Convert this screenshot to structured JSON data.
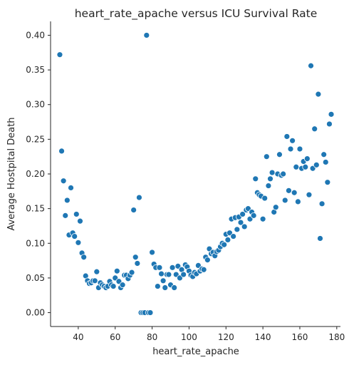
{
  "chart_data": {
    "type": "scatter",
    "title": "heart_rate_apache versus ICU Survival Rate",
    "xlabel": "heart_rate_apache",
    "ylabel": "Average Hostpital Death",
    "xlim": [
      25,
      182
    ],
    "ylim": [
      -0.02,
      0.42
    ],
    "xticks": [
      40,
      60,
      80,
      100,
      120,
      140,
      160,
      180
    ],
    "yticks": [
      0.0,
      0.05,
      0.1,
      0.15,
      0.2,
      0.25,
      0.3,
      0.35,
      0.4
    ],
    "ytick_labels": [
      "0.00",
      "0.05",
      "0.10",
      "0.15",
      "0.20",
      "0.25",
      "0.30",
      "0.35",
      "0.40"
    ],
    "grid": false,
    "marker_color": "#1f77b4",
    "marker_edge": "#ffffff",
    "points": [
      [
        30,
        0.372
      ],
      [
        31,
        0.233
      ],
      [
        32,
        0.19
      ],
      [
        33,
        0.14
      ],
      [
        34,
        0.162
      ],
      [
        35,
        0.112
      ],
      [
        36,
        0.18
      ],
      [
        37,
        0.115
      ],
      [
        38,
        0.11
      ],
      [
        39,
        0.142
      ],
      [
        40,
        0.101
      ],
      [
        41,
        0.132
      ],
      [
        42,
        0.086
      ],
      [
        43,
        0.08
      ],
      [
        44,
        0.053
      ],
      [
        45,
        0.046
      ],
      [
        46,
        0.042
      ],
      [
        47,
        0.043
      ],
      [
        48,
        0.046
      ],
      [
        49,
        0.046
      ],
      [
        50,
        0.059
      ],
      [
        51,
        0.036
      ],
      [
        52,
        0.043
      ],
      [
        53,
        0.04
      ],
      [
        54,
        0.038
      ],
      [
        55,
        0.036
      ],
      [
        56,
        0.038
      ],
      [
        57,
        0.045
      ],
      [
        58,
        0.04
      ],
      [
        59,
        0.038
      ],
      [
        60,
        0.05
      ],
      [
        61,
        0.06
      ],
      [
        62,
        0.045
      ],
      [
        63,
        0.036
      ],
      [
        64,
        0.04
      ],
      [
        65,
        0.054
      ],
      [
        66,
        0.054
      ],
      [
        67,
        0.049
      ],
      [
        68,
        0.054
      ],
      [
        69,
        0.058
      ],
      [
        70,
        0.148
      ],
      [
        71,
        0.08
      ],
      [
        72,
        0.071
      ],
      [
        73,
        0.166
      ],
      [
        74,
        0.0
      ],
      [
        75,
        0.0
      ],
      [
        76,
        0.0
      ],
      [
        77,
        0.4
      ],
      [
        78,
        0.0
      ],
      [
        79,
        0.0
      ],
      [
        80,
        0.087
      ],
      [
        81,
        0.07
      ],
      [
        82,
        0.065
      ],
      [
        83,
        0.038
      ],
      [
        84,
        0.065
      ],
      [
        85,
        0.056
      ],
      [
        86,
        0.046
      ],
      [
        87,
        0.036
      ],
      [
        88,
        0.055
      ],
      [
        89,
        0.055
      ],
      [
        90,
        0.04
      ],
      [
        91,
        0.065
      ],
      [
        92,
        0.036
      ],
      [
        93,
        0.055
      ],
      [
        94,
        0.067
      ],
      [
        95,
        0.05
      ],
      [
        96,
        0.062
      ],
      [
        97,
        0.055
      ],
      [
        98,
        0.069
      ],
      [
        99,
        0.066
      ],
      [
        100,
        0.06
      ],
      [
        101,
        0.054
      ],
      [
        102,
        0.052
      ],
      [
        103,
        0.058
      ],
      [
        104,
        0.056
      ],
      [
        105,
        0.068
      ],
      [
        106,
        0.06
      ],
      [
        107,
        0.063
      ],
      [
        108,
        0.062
      ],
      [
        109,
        0.08
      ],
      [
        110,
        0.076
      ],
      [
        111,
        0.092
      ],
      [
        112,
        0.085
      ],
      [
        113,
        0.087
      ],
      [
        114,
        0.082
      ],
      [
        115,
        0.088
      ],
      [
        116,
        0.09
      ],
      [
        117,
        0.095
      ],
      [
        118,
        0.1
      ],
      [
        119,
        0.098
      ],
      [
        120,
        0.113
      ],
      [
        121,
        0.105
      ],
      [
        122,
        0.115
      ],
      [
        123,
        0.135
      ],
      [
        124,
        0.11
      ],
      [
        125,
        0.137
      ],
      [
        126,
        0.12
      ],
      [
        127,
        0.138
      ],
      [
        128,
        0.13
      ],
      [
        129,
        0.142
      ],
      [
        130,
        0.124
      ],
      [
        131,
        0.148
      ],
      [
        132,
        0.15
      ],
      [
        133,
        0.135
      ],
      [
        134,
        0.145
      ],
      [
        135,
        0.14
      ],
      [
        136,
        0.193
      ],
      [
        137,
        0.173
      ],
      [
        138,
        0.17
      ],
      [
        139,
        0.168
      ],
      [
        140,
        0.135
      ],
      [
        141,
        0.165
      ],
      [
        142,
        0.225
      ],
      [
        143,
        0.183
      ],
      [
        144,
        0.193
      ],
      [
        145,
        0.202
      ],
      [
        146,
        0.145
      ],
      [
        147,
        0.152
      ],
      [
        148,
        0.2
      ],
      [
        149,
        0.228
      ],
      [
        150,
        0.198
      ],
      [
        151,
        0.2
      ],
      [
        152,
        0.162
      ],
      [
        153,
        0.254
      ],
      [
        154,
        0.176
      ],
      [
        155,
        0.236
      ],
      [
        156,
        0.248
      ],
      [
        157,
        0.173
      ],
      [
        158,
        0.21
      ],
      [
        159,
        0.16
      ],
      [
        160,
        0.236
      ],
      [
        161,
        0.208
      ],
      [
        162,
        0.218
      ],
      [
        163,
        0.21
      ],
      [
        164,
        0.222
      ],
      [
        165,
        0.17
      ],
      [
        166,
        0.356
      ],
      [
        167,
        0.208
      ],
      [
        168,
        0.265
      ],
      [
        169,
        0.213
      ],
      [
        170,
        0.315
      ],
      [
        171,
        0.107
      ],
      [
        172,
        0.157
      ],
      [
        173,
        0.228
      ],
      [
        174,
        0.217
      ],
      [
        175,
        0.188
      ],
      [
        176,
        0.272
      ],
      [
        177,
        0.286
      ]
    ]
  }
}
